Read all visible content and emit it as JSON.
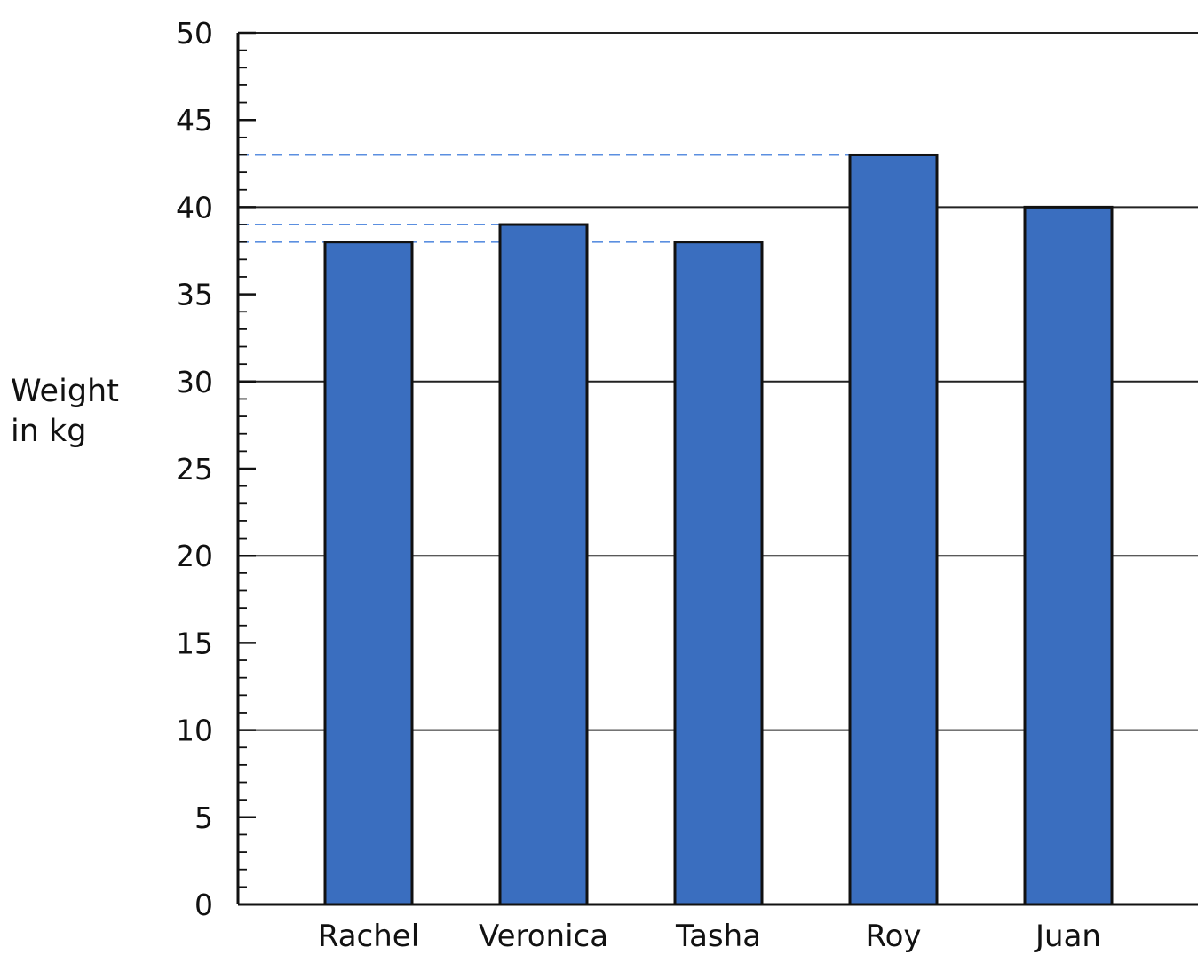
{
  "chart_data": {
    "type": "bar",
    "categories": [
      "Rachel",
      "Veronica",
      "Tasha",
      "Roy",
      "Juan"
    ],
    "values": [
      38,
      39,
      38,
      43,
      40
    ],
    "ylabel_lines": [
      "Weight",
      "in kg"
    ],
    "ylim": [
      0,
      50
    ],
    "yticks": [
      0,
      5,
      10,
      15,
      20,
      25,
      30,
      35,
      40,
      45,
      50
    ],
    "gridlines_at": [
      10,
      20,
      30,
      40,
      50
    ],
    "reference_lines": [
      43,
      39,
      38
    ],
    "grid": true,
    "colors": {
      "bar": "#3a6ebf",
      "bar_edge": "#111111",
      "grid": "#222222",
      "reference": "#5b8fe0"
    }
  }
}
